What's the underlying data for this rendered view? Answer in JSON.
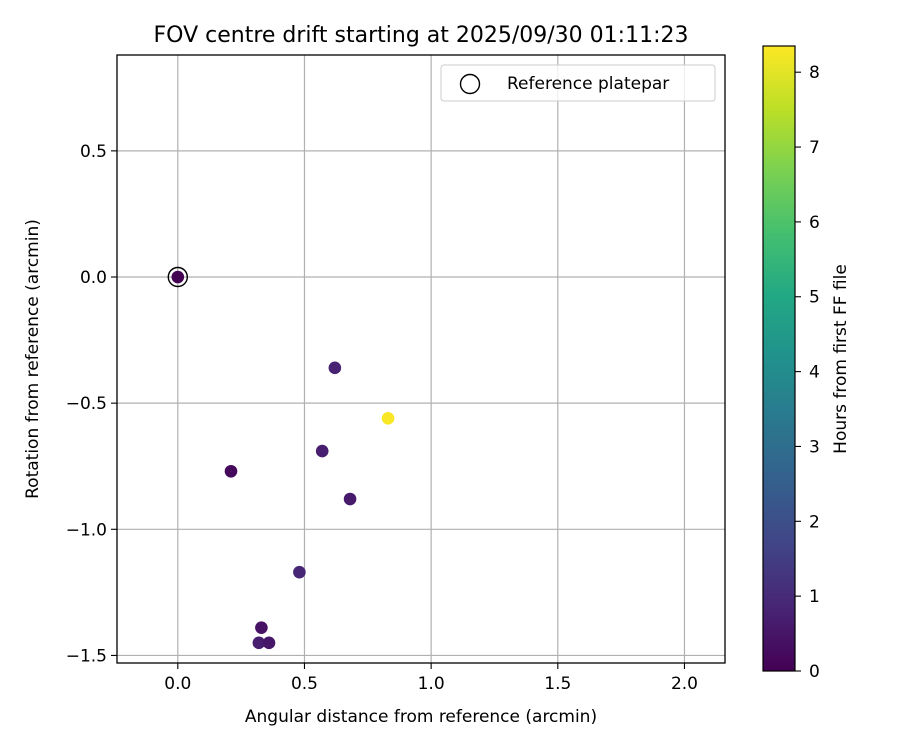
{
  "chart_data": {
    "type": "scatter",
    "title": "FOV centre drift starting at 2025/09/30 01:11:23",
    "xlabel": "Angular distance from reference (arcmin)",
    "ylabel": "Rotation from reference (arcmin)",
    "xlim": [
      -0.24,
      2.16
    ],
    "ylim": [
      -1.53,
      0.88
    ],
    "xticks": [
      0.0,
      0.5,
      1.0,
      1.5,
      2.0
    ],
    "xtick_labels": [
      "0.0",
      "0.5",
      "1.0",
      "1.5",
      "2.0"
    ],
    "yticks": [
      0.5,
      0.0,
      -0.5,
      -1.0,
      -1.5
    ],
    "ytick_labels": [
      "0.5",
      "0.0",
      "−0.5",
      "−1.0",
      "−1.5"
    ],
    "grid": true,
    "legend": {
      "position": "top-right",
      "entries": [
        "Reference platepar"
      ]
    },
    "reference_point": {
      "x": 0.0,
      "y": 0.0
    },
    "points": [
      {
        "x": 0.0,
        "y": 0.0,
        "hours": 0.0
      },
      {
        "x": 0.21,
        "y": -0.77,
        "hours": 0.2
      },
      {
        "x": 0.62,
        "y": -0.36,
        "hours": 0.8
      },
      {
        "x": 0.57,
        "y": -0.69,
        "hours": 0.7
      },
      {
        "x": 0.68,
        "y": -0.88,
        "hours": 0.6
      },
      {
        "x": 0.48,
        "y": -1.17,
        "hours": 0.9
      },
      {
        "x": 0.33,
        "y": -1.39,
        "hours": 0.4
      },
      {
        "x": 0.32,
        "y": -1.45,
        "hours": 0.7
      },
      {
        "x": 0.36,
        "y": -1.45,
        "hours": 0.5
      },
      {
        "x": 0.83,
        "y": -0.56,
        "hours": 8.3
      }
    ],
    "colorbar": {
      "label": "Hours from first FF file",
      "colormap": "viridis",
      "range": [
        0,
        8.35
      ],
      "ticks": [
        0,
        1,
        2,
        3,
        4,
        5,
        6,
        7,
        8
      ],
      "tick_labels": [
        "0",
        "1",
        "2",
        "3",
        "4",
        "5",
        "6",
        "7",
        "8"
      ]
    }
  }
}
